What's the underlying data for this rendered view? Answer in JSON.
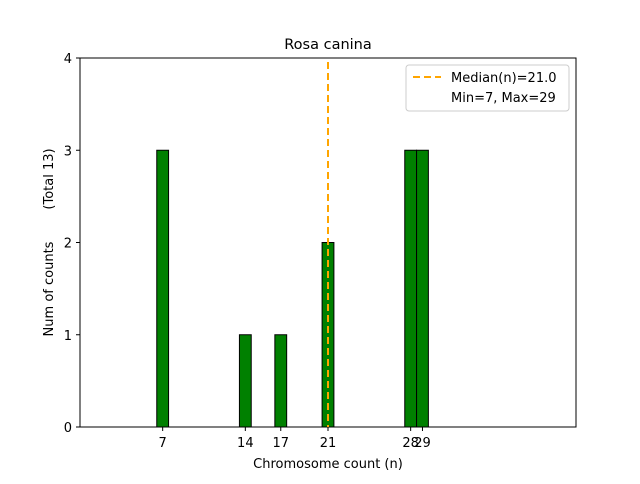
{
  "chart_data": {
    "type": "bar",
    "title": "Rosa canina",
    "xlabel": "Chromosome count (n)",
    "ylabel": "Num of counts",
    "ylabel_total": "(Total 13)",
    "xlim": [
      0,
      42
    ],
    "ylim": [
      0,
      4
    ],
    "bin_width": 1,
    "empty_bin_range": [
      6.5,
      32.5
    ],
    "x": [
      7,
      14,
      17,
      21,
      28,
      29
    ],
    "values": [
      3,
      1,
      1,
      2,
      3,
      3
    ],
    "xticks": [
      7,
      14,
      17,
      21,
      28,
      29
    ],
    "yticks": [
      0,
      1,
      2,
      3,
      4
    ],
    "bar_color": "#008000",
    "median": 21.0,
    "median_color": "#FFA500",
    "legend": {
      "placement": "top-right",
      "entries": [
        "Median(n)=21.0",
        "Min=7, Max=29"
      ]
    },
    "grid": false
  }
}
